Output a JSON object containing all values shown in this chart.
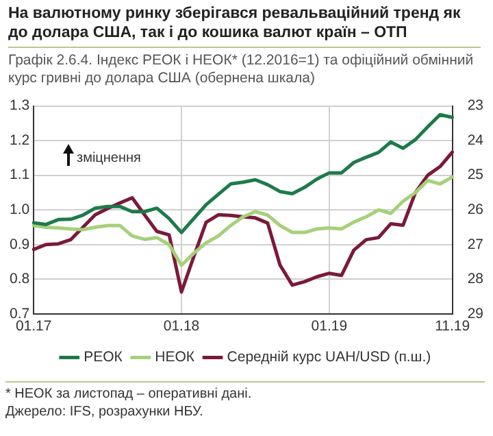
{
  "chart_data": {
    "type": "line",
    "title": "На валютному ринку зберігався ревальваційний тренд як до долара США, так і до кошика валют країн – ОТП",
    "subtitle": "Графік 2.6.4. Індекс РЕОК і НЕОК* (12.2016=1) та офіційний обмінний курс гривні до долара США (обернена шкала)",
    "categories": [
      "01.17",
      null,
      null,
      null,
      null,
      null,
      null,
      null,
      null,
      null,
      null,
      null,
      "01.18",
      null,
      null,
      null,
      null,
      null,
      null,
      null,
      null,
      null,
      null,
      null,
      "01.19",
      null,
      null,
      null,
      null,
      null,
      null,
      null,
      null,
      null,
      "11.19"
    ],
    "series": [
      {
        "name": "РЕОК",
        "color": "#1e7a4a",
        "values": [
          0.963,
          0.958,
          0.972,
          0.973,
          0.985,
          1.005,
          1.01,
          1.01,
          0.995,
          0.995,
          1.005,
          0.975,
          0.935,
          0.975,
          1.015,
          1.045,
          1.075,
          1.08,
          1.087,
          1.073,
          1.053,
          1.047,
          1.065,
          1.089,
          1.107,
          1.107,
          1.137,
          1.152,
          1.166,
          1.196,
          1.178,
          1.203,
          1.24,
          1.275,
          1.267
        ]
      },
      {
        "name": "НЕОК",
        "color": "#a6d07a",
        "values": [
          0.955,
          0.95,
          0.948,
          0.945,
          0.943,
          0.95,
          0.955,
          0.955,
          0.925,
          0.915,
          0.92,
          0.9,
          0.84,
          0.875,
          0.905,
          0.925,
          0.955,
          0.98,
          0.995,
          0.985,
          0.955,
          0.935,
          0.935,
          0.945,
          0.948,
          0.945,
          0.965,
          0.98,
          1.0,
          0.99,
          1.025,
          1.05,
          1.085,
          1.075,
          1.095
        ]
      },
      {
        "name": "Середній курс UAH/USD (п.ш.)",
        "color": "#7a1a3a",
        "axis": "y2",
        "values": [
          27.14,
          27.0,
          26.98,
          26.86,
          26.5,
          26.14,
          25.96,
          25.8,
          25.65,
          26.14,
          26.62,
          26.72,
          28.37,
          27.35,
          26.36,
          26.14,
          26.16,
          26.2,
          26.23,
          26.38,
          27.59,
          28.17,
          28.07,
          27.93,
          27.83,
          27.89,
          27.16,
          26.86,
          26.8,
          26.4,
          26.44,
          25.5,
          25.0,
          24.75,
          24.33
        ]
      }
    ],
    "ylim": [
      0.7,
      1.3
    ],
    "yticks": [
      0.7,
      0.8,
      0.9,
      {
        "value": 1,
        "label": "1.0"
      },
      1.1,
      1.2,
      1.3
    ],
    "y2lim": [
      29,
      23
    ],
    "y2ticks": [
      23,
      24,
      25,
      26,
      27,
      28,
      29
    ],
    "grid": true,
    "legend": "bottom",
    "marker": "none",
    "line_style": "solid",
    "annotations": [
      "зміцнення",
      "* НЕОК за листопад – оперативні дані.",
      "Джерело: IFS, розрахунки НБУ."
    ]
  }
}
